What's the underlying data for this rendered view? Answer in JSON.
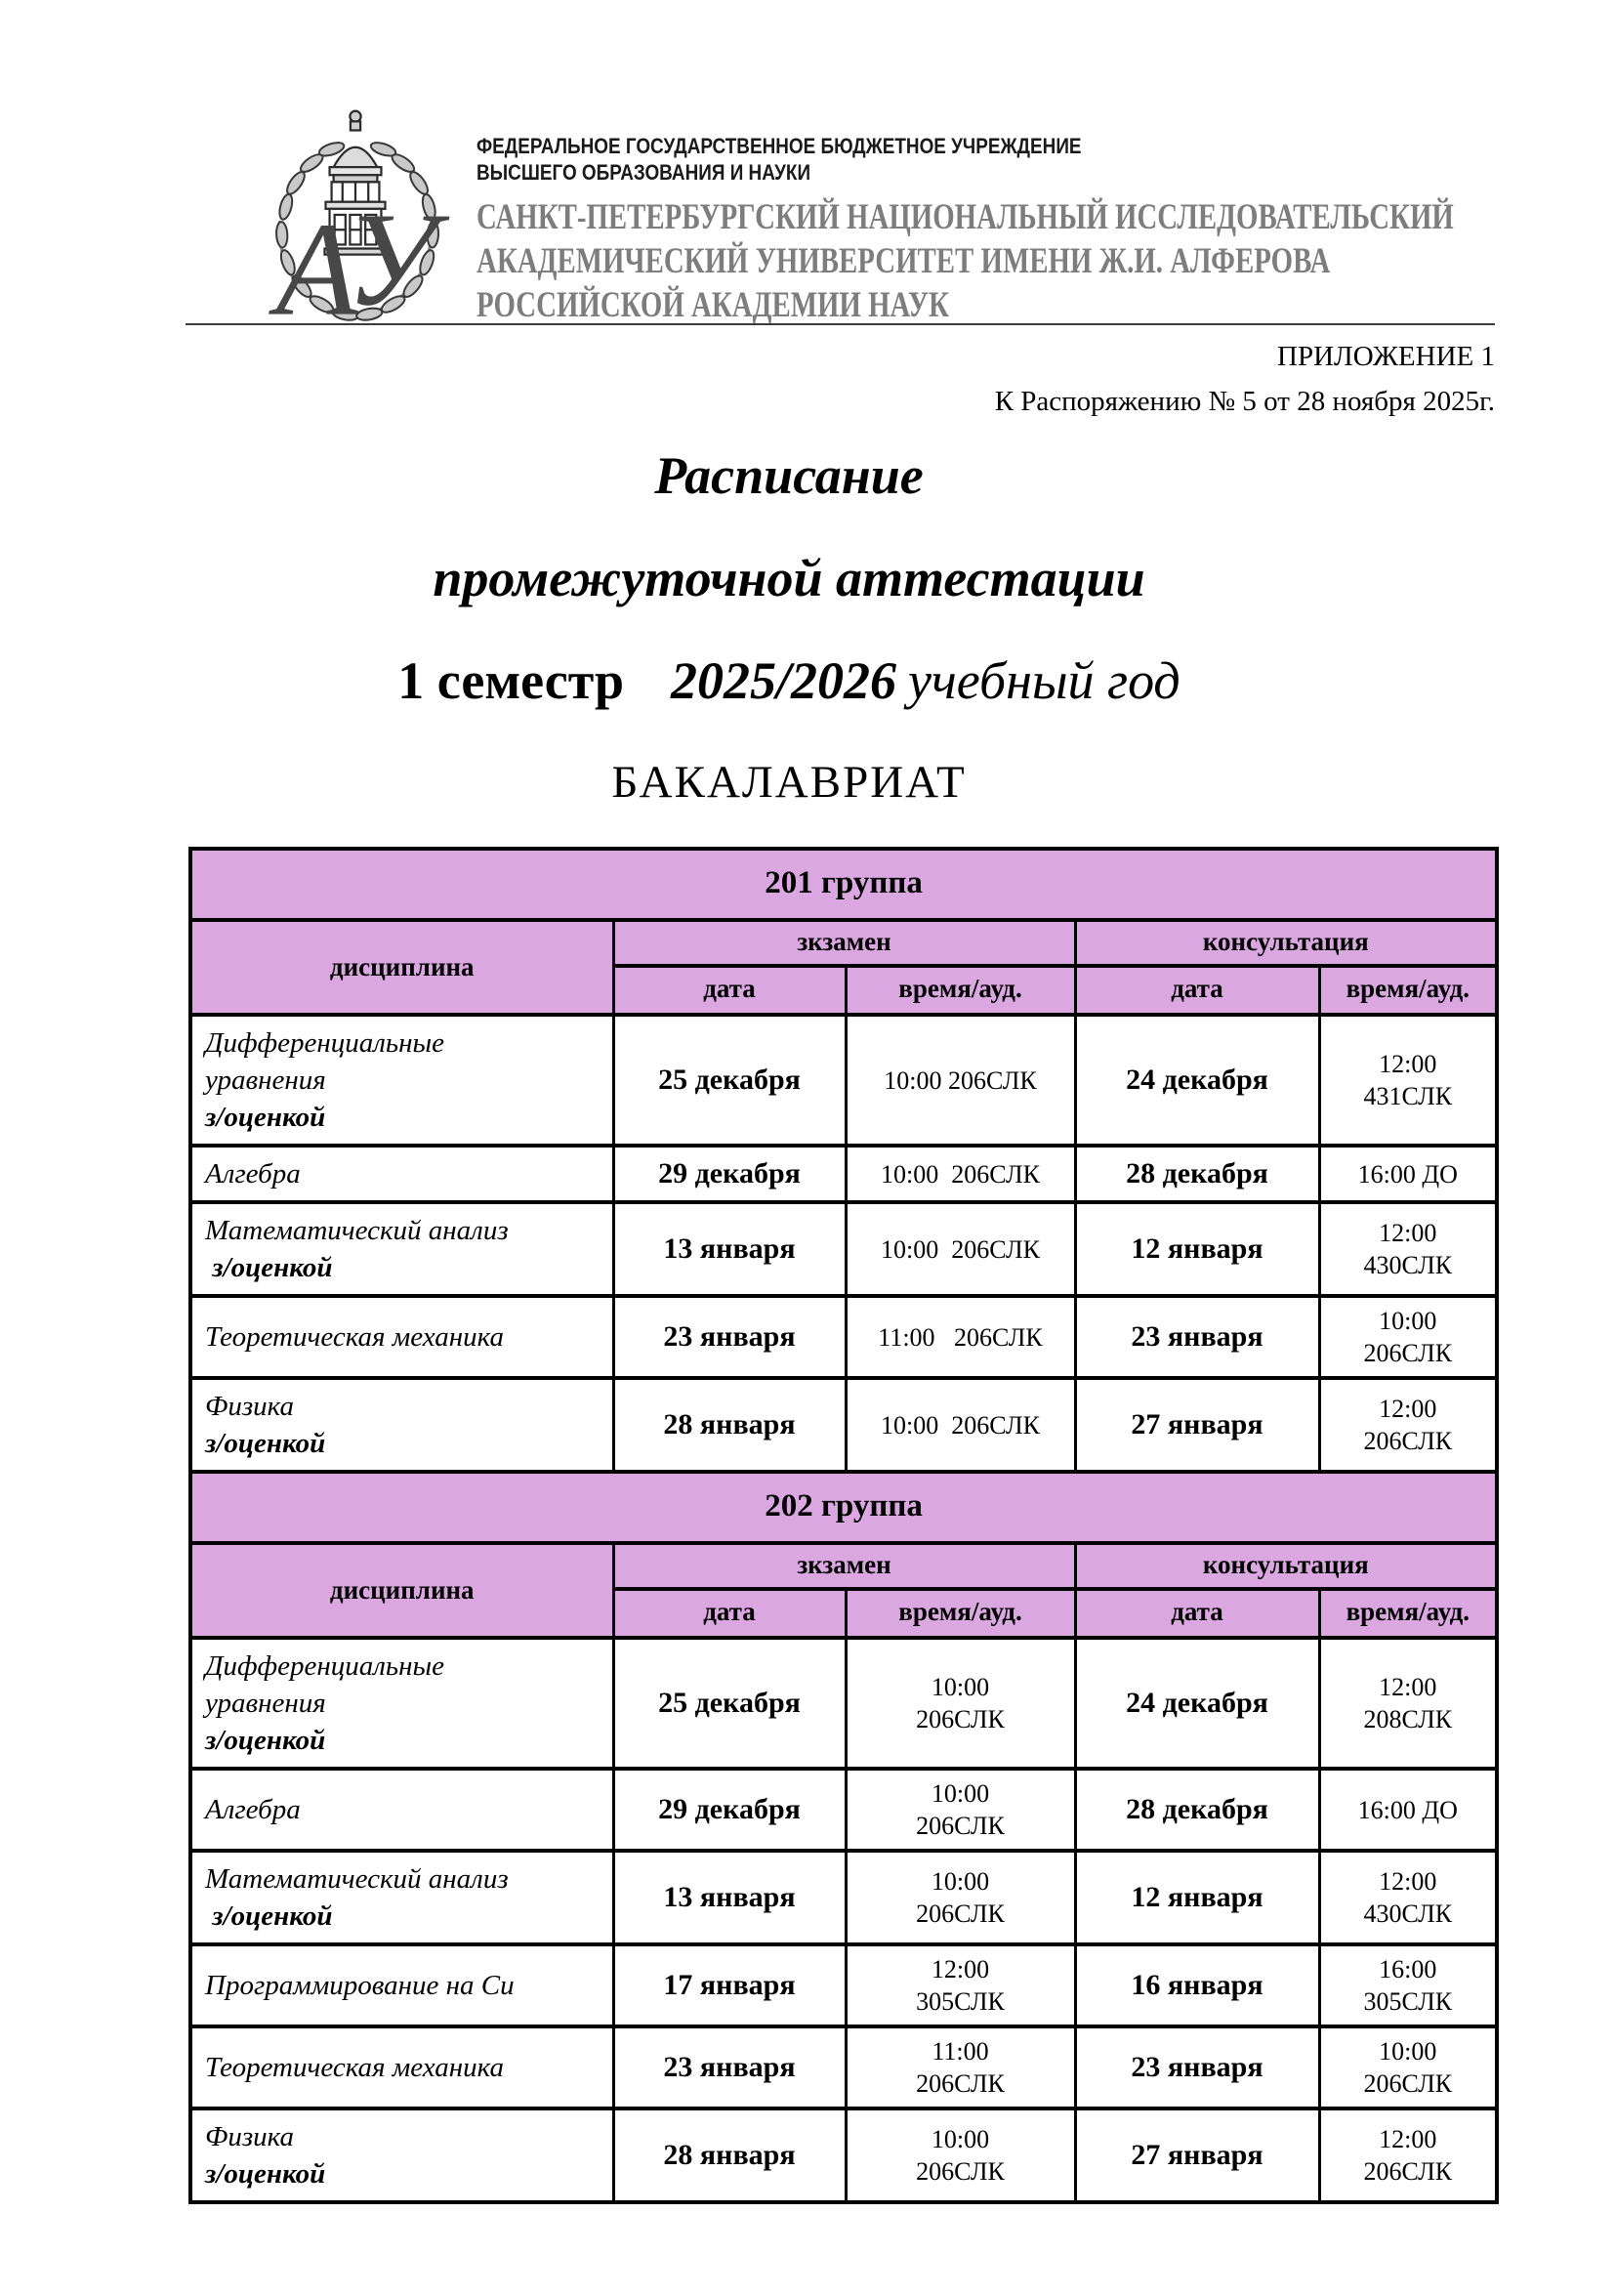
{
  "colors": {
    "accent": "#dba7e1",
    "org_name_gray": "#7d7d7d"
  },
  "header": {
    "logo": "university-emblem",
    "org_small_line1": "ФЕДЕРАЛЬНОЕ ГОСУДАРСТВЕННОЕ БЮДЖЕТНОЕ УЧРЕЖДЕНИЕ",
    "org_small_line2": "ВЫСШЕГО ОБРАЗОВАНИЯ И НАУКИ",
    "org_name_line1": "САНКТ-ПЕТЕРБУРГСКИЙ НАЦИОНАЛЬНЫЙ ИССЛЕДОВАТЕЛЬСКИЙ",
    "org_name_line2": "АКАДЕМИЧЕСКИЙ УНИВЕРСИТЕТ ИМЕНИ Ж.И. АЛФЕРОВА",
    "org_name_line3": "РОССИЙСКОЙ АКАДЕМИИ НАУК"
  },
  "annex": {
    "line1": "ПРИЛОЖЕНИЕ 1",
    "line2": "К Распоряжению № 5 от 28 ноября 2025г."
  },
  "title": {
    "line1": "Расписание",
    "line2": "промежуточной аттестации",
    "line3_semester": "1 семестр",
    "line3_year": "2025/2026",
    "line3_suffix": "учебный год",
    "line4": "БАКАЛАВРИАТ"
  },
  "table": {
    "col_discipline": "дисциплина",
    "col_exam": "зкзамен",
    "col_consultation": "консультация",
    "col_date": "дата",
    "col_time": "время/ауд."
  },
  "groups": [
    {
      "title": "201 группа",
      "rows": [
        {
          "discipline": [
            "Дифференциальные",
            "уравнения"
          ],
          "discipline_bold": "з/оценкой",
          "exam_date": "25 декабря",
          "exam_time": [
            "10:00 206СЛК"
          ],
          "cons_date": "24 декабря",
          "cons_time": [
            "12:00",
            "431СЛК"
          ]
        },
        {
          "discipline": [
            "Алгебра"
          ],
          "discipline_bold": "",
          "exam_date": "29 декабря",
          "exam_time": [
            "10:00  206СЛК"
          ],
          "cons_date": "28 декабря",
          "cons_time": [
            "16:00 ДО"
          ]
        },
        {
          "discipline": [
            "Математический анализ"
          ],
          "discipline_bold": " з/оценкой",
          "exam_date": "13 января",
          "exam_time": [
            "10:00  206СЛК"
          ],
          "cons_date": "12 января",
          "cons_time": [
            "12:00",
            "430СЛК"
          ]
        },
        {
          "discipline": [
            "Теоретическая механика"
          ],
          "discipline_bold": "",
          "exam_date": "23 января",
          "exam_time": [
            "11:00   206СЛК"
          ],
          "cons_date": "23 января",
          "cons_time": [
            "10:00",
            "206СЛК"
          ]
        },
        {
          "discipline": [
            "Физика"
          ],
          "discipline_bold": "з/оценкой",
          "exam_date": "28 января",
          "exam_time": [
            "10:00  206СЛК"
          ],
          "cons_date": "27 января",
          "cons_time": [
            "12:00",
            "206СЛК"
          ]
        }
      ]
    },
    {
      "title": "202 группа",
      "rows": [
        {
          "discipline": [
            "Дифференциальные",
            "уравнения"
          ],
          "discipline_bold": "з/оценкой",
          "exam_date": "25 декабря",
          "exam_time": [
            "10:00",
            "206СЛК"
          ],
          "cons_date": "24 декабря",
          "cons_time": [
            "12:00",
            "208СЛК"
          ]
        },
        {
          "discipline": [
            "Алгебра"
          ],
          "discipline_bold": "",
          "exam_date": "29 декабря",
          "exam_time": [
            "10:00",
            "206СЛК"
          ],
          "cons_date": "28 декабря",
          "cons_time": [
            "16:00 ДО"
          ]
        },
        {
          "discipline": [
            "Математический анализ"
          ],
          "discipline_bold": " з/оценкой",
          "exam_date": "13 января",
          "exam_time": [
            "10:00",
            "206СЛК"
          ],
          "cons_date": "12 января",
          "cons_time": [
            "12:00",
            "430СЛК"
          ]
        },
        {
          "discipline": [
            "Программирование на Си"
          ],
          "discipline_bold": "",
          "exam_date": "17 января",
          "exam_time": [
            "12:00",
            "305СЛК"
          ],
          "cons_date": "16 января",
          "cons_time": [
            "16:00",
            "305СЛК"
          ]
        },
        {
          "discipline": [
            "Теоретическая механика"
          ],
          "discipline_bold": "",
          "exam_date": "23 января",
          "exam_time": [
            "11:00",
            "206СЛК"
          ],
          "cons_date": "23 января",
          "cons_time": [
            "10:00",
            "206СЛК"
          ]
        },
        {
          "discipline": [
            "Физика"
          ],
          "discipline_bold": "з/оценкой",
          "exam_date": "28 января",
          "exam_time": [
            "10:00",
            "206СЛК"
          ],
          "cons_date": "27 января",
          "cons_time": [
            "12:00",
            "206СЛК"
          ]
        }
      ]
    }
  ]
}
